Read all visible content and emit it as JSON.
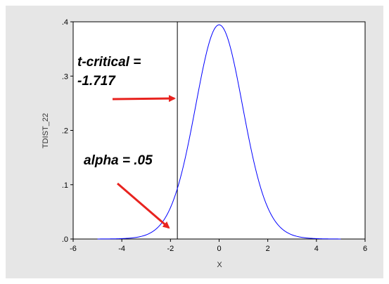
{
  "chart_data": {
    "type": "line",
    "title": "",
    "xlabel": "X",
    "ylabel": "TDIST_22",
    "xlim": [
      -6,
      6
    ],
    "ylim": [
      0,
      0.4
    ],
    "x_ticks": [
      -6,
      -4,
      -2,
      0,
      2,
      4,
      6
    ],
    "x_tick_labels": [
      "-6",
      "-4",
      "-2",
      "0",
      "2",
      "4",
      "6"
    ],
    "y_ticks": [
      0,
      0.1,
      0.2,
      0.3,
      0.4
    ],
    "y_tick_labels": [
      ".0",
      ".1",
      ".2",
      ".3",
      ".4"
    ],
    "grid": false,
    "series": [
      {
        "distribution": "student-t",
        "df": 22,
        "x_range": [
          -5,
          5
        ],
        "peak": [
          0,
          0.395
        ],
        "color": "#0000ff"
      }
    ],
    "vertical_lines": [
      {
        "x": -1.717,
        "color": "#000000"
      }
    ],
    "annotations": [
      {
        "text_lines": [
          "t-critical =",
          "-1.717"
        ],
        "arrow_color": "#e8231f"
      },
      {
        "text_lines": [
          "alpha = .05"
        ],
        "arrow_color": "#e8231f"
      }
    ],
    "colors": {
      "panel_background": "#e6e6e6",
      "plot_background": "#ffffff",
      "curve": "#0000ff",
      "arrow": "#e8231f"
    }
  }
}
